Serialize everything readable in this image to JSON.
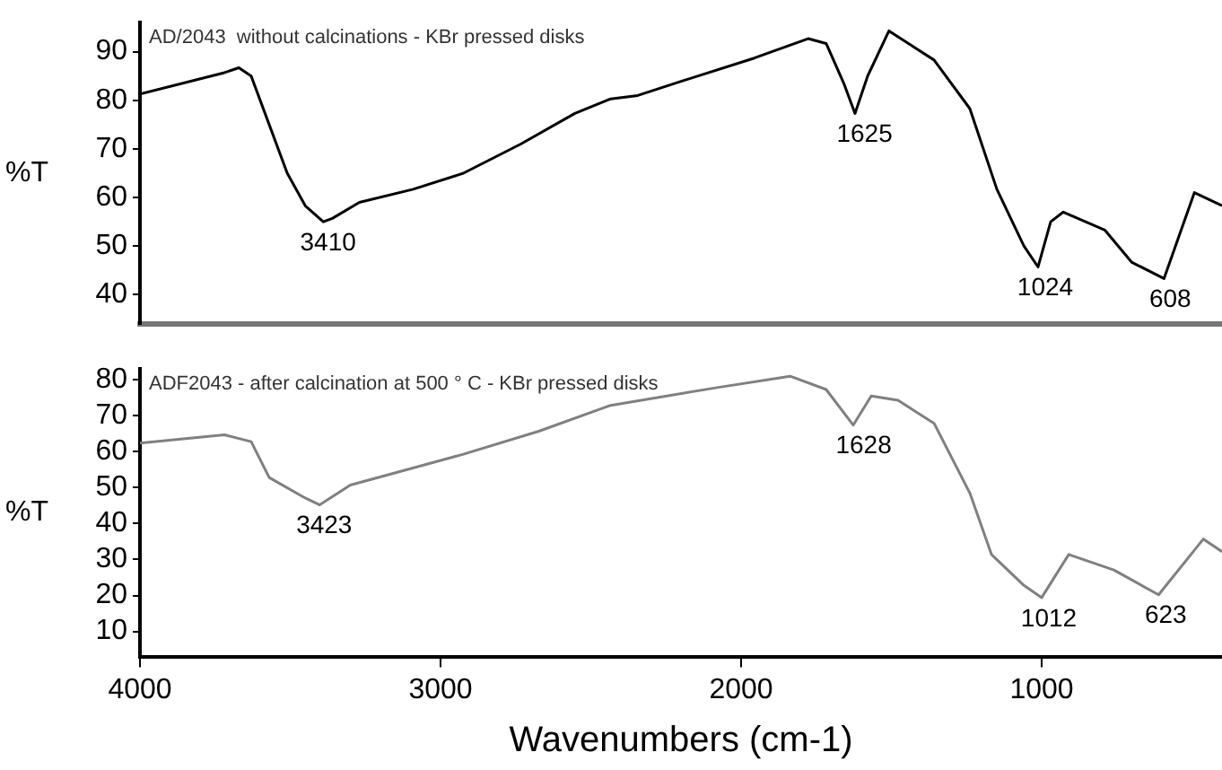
{
  "chart_data": [
    {
      "type": "line",
      "title": "AD/2043  without calcinations - KBr pressed disks",
      "ylabel": "%T",
      "color": "#000000",
      "marker": "none",
      "grid": false,
      "legend": false,
      "tick_labels": "y",
      "x": [
        4000,
        3719,
        3671,
        3630,
        3570,
        3510,
        3450,
        3390,
        3360,
        3270,
        3091,
        2924,
        2733,
        2553,
        2434,
        2344,
        2195,
        1956,
        1777,
        1717,
        1657,
        1621,
        1579,
        1508,
        1358,
        1239,
        1149,
        1059,
        1012,
        970,
        928,
        790,
        701,
        593,
        492,
        400
      ],
      "values": [
        81.3,
        85.7,
        86.7,
        85,
        75,
        65,
        58.3,
        55,
        55.7,
        59,
        61.7,
        65,
        71,
        77.3,
        80.3,
        81,
        84,
        88.7,
        92.7,
        91.7,
        83.3,
        77.3,
        85,
        94.3,
        88.3,
        78.3,
        61.7,
        50,
        45.7,
        55,
        57,
        53.3,
        46.7,
        43.3,
        61,
        58.3
      ],
      "xlim": [
        4000,
        400
      ],
      "ylim": [
        34,
        96
      ],
      "yticks": [
        40,
        50,
        60,
        70,
        80,
        90
      ],
      "annotations": [
        {
          "text": "3410",
          "x": 3410,
          "y": 55
        },
        {
          "text": "1625",
          "x": 1625,
          "y": 77.3
        },
        {
          "text": "1024",
          "x": 1024,
          "y": 45.7
        },
        {
          "text": "608",
          "x": 608,
          "y": 43.3
        }
      ]
    },
    {
      "type": "line",
      "title": "ADF2043 - after calcination at 500 ° C - KBr pressed disks",
      "ylabel": "%T",
      "xlabel": "Wavenumbers (cm-1)",
      "color": "#808080",
      "marker": "none",
      "grid": false,
      "legend": false,
      "x": [
        4000,
        3719,
        3630,
        3570,
        3450,
        3402,
        3300,
        2924,
        2673,
        2434,
        2075,
        1837,
        1717,
        1627,
        1567,
        1478,
        1358,
        1239,
        1167,
        1059,
        1000,
        910,
        760,
        611,
        462,
        400
      ],
      "values": [
        62.4,
        64.7,
        62.8,
        52.8,
        47.1,
        45.2,
        50.7,
        59.3,
        65.7,
        72.9,
        77.9,
        81,
        77.3,
        67.4,
        75.5,
        74.3,
        67.9,
        48.5,
        31.4,
        22.8,
        19.4,
        31.4,
        27.1,
        20.2,
        35.7,
        32.2
      ],
      "xlim": [
        4000,
        400
      ],
      "xticks": [
        4000,
        3000,
        2000,
        1000
      ],
      "ylim": [
        3,
        83
      ],
      "yticks": [
        10,
        20,
        30,
        40,
        50,
        60,
        70,
        80
      ],
      "annotations": [
        {
          "text": "3423",
          "x": 3423,
          "y": 45.2
        },
        {
          "text": "1628",
          "x": 1628,
          "y": 67.4
        },
        {
          "text": "1012",
          "x": 1012,
          "y": 19.4
        },
        {
          "text": "623",
          "x": 623,
          "y": 20.2
        }
      ]
    }
  ]
}
